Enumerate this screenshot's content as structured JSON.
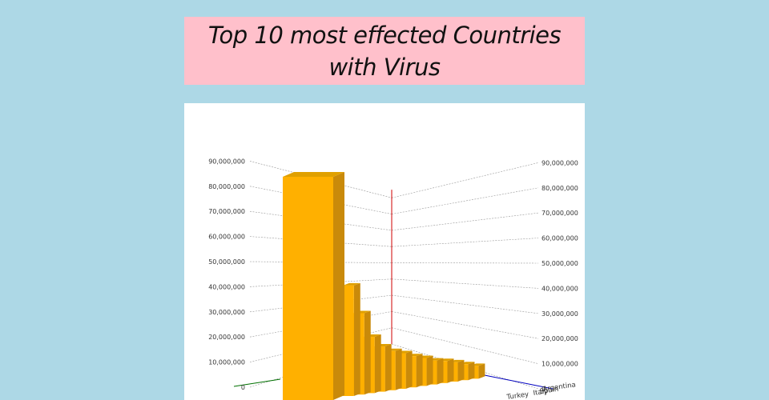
{
  "page": {
    "title": "Top 10 most effected Countries with Virus"
  },
  "colors": {
    "background": "#add8e6",
    "title_background": "#ffc0cb",
    "bar_front": "#ffb000",
    "bar_side": "#c98a0a",
    "bar_top": "#e0a000"
  },
  "chart_data": {
    "type": "bar",
    "title": "",
    "xlabel": "",
    "ylabel": "",
    "three_d": true,
    "ylim": [
      0,
      90000000
    ],
    "y_ticks": [
      "0",
      "10,000,000",
      "20,000,000",
      "30,000,000",
      "40,000,000",
      "50,000,000",
      "60,000,000",
      "70,000,000",
      "80,000,000",
      "90,000,000"
    ],
    "grid": true,
    "categories": [
      "",
      "",
      "",
      "",
      "",
      "",
      "",
      "",
      "",
      "",
      "",
      "",
      "",
      "",
      "Turkey",
      "Italy",
      "Spain",
      "Argentina"
    ],
    "values": [
      86000000,
      44000000,
      33500000,
      24000000,
      20000000,
      18000000,
      17000000,
      15500000,
      14500000,
      13000000,
      12500000,
      11500000,
      10000000,
      8500000,
      0,
      0,
      0,
      0
    ]
  }
}
